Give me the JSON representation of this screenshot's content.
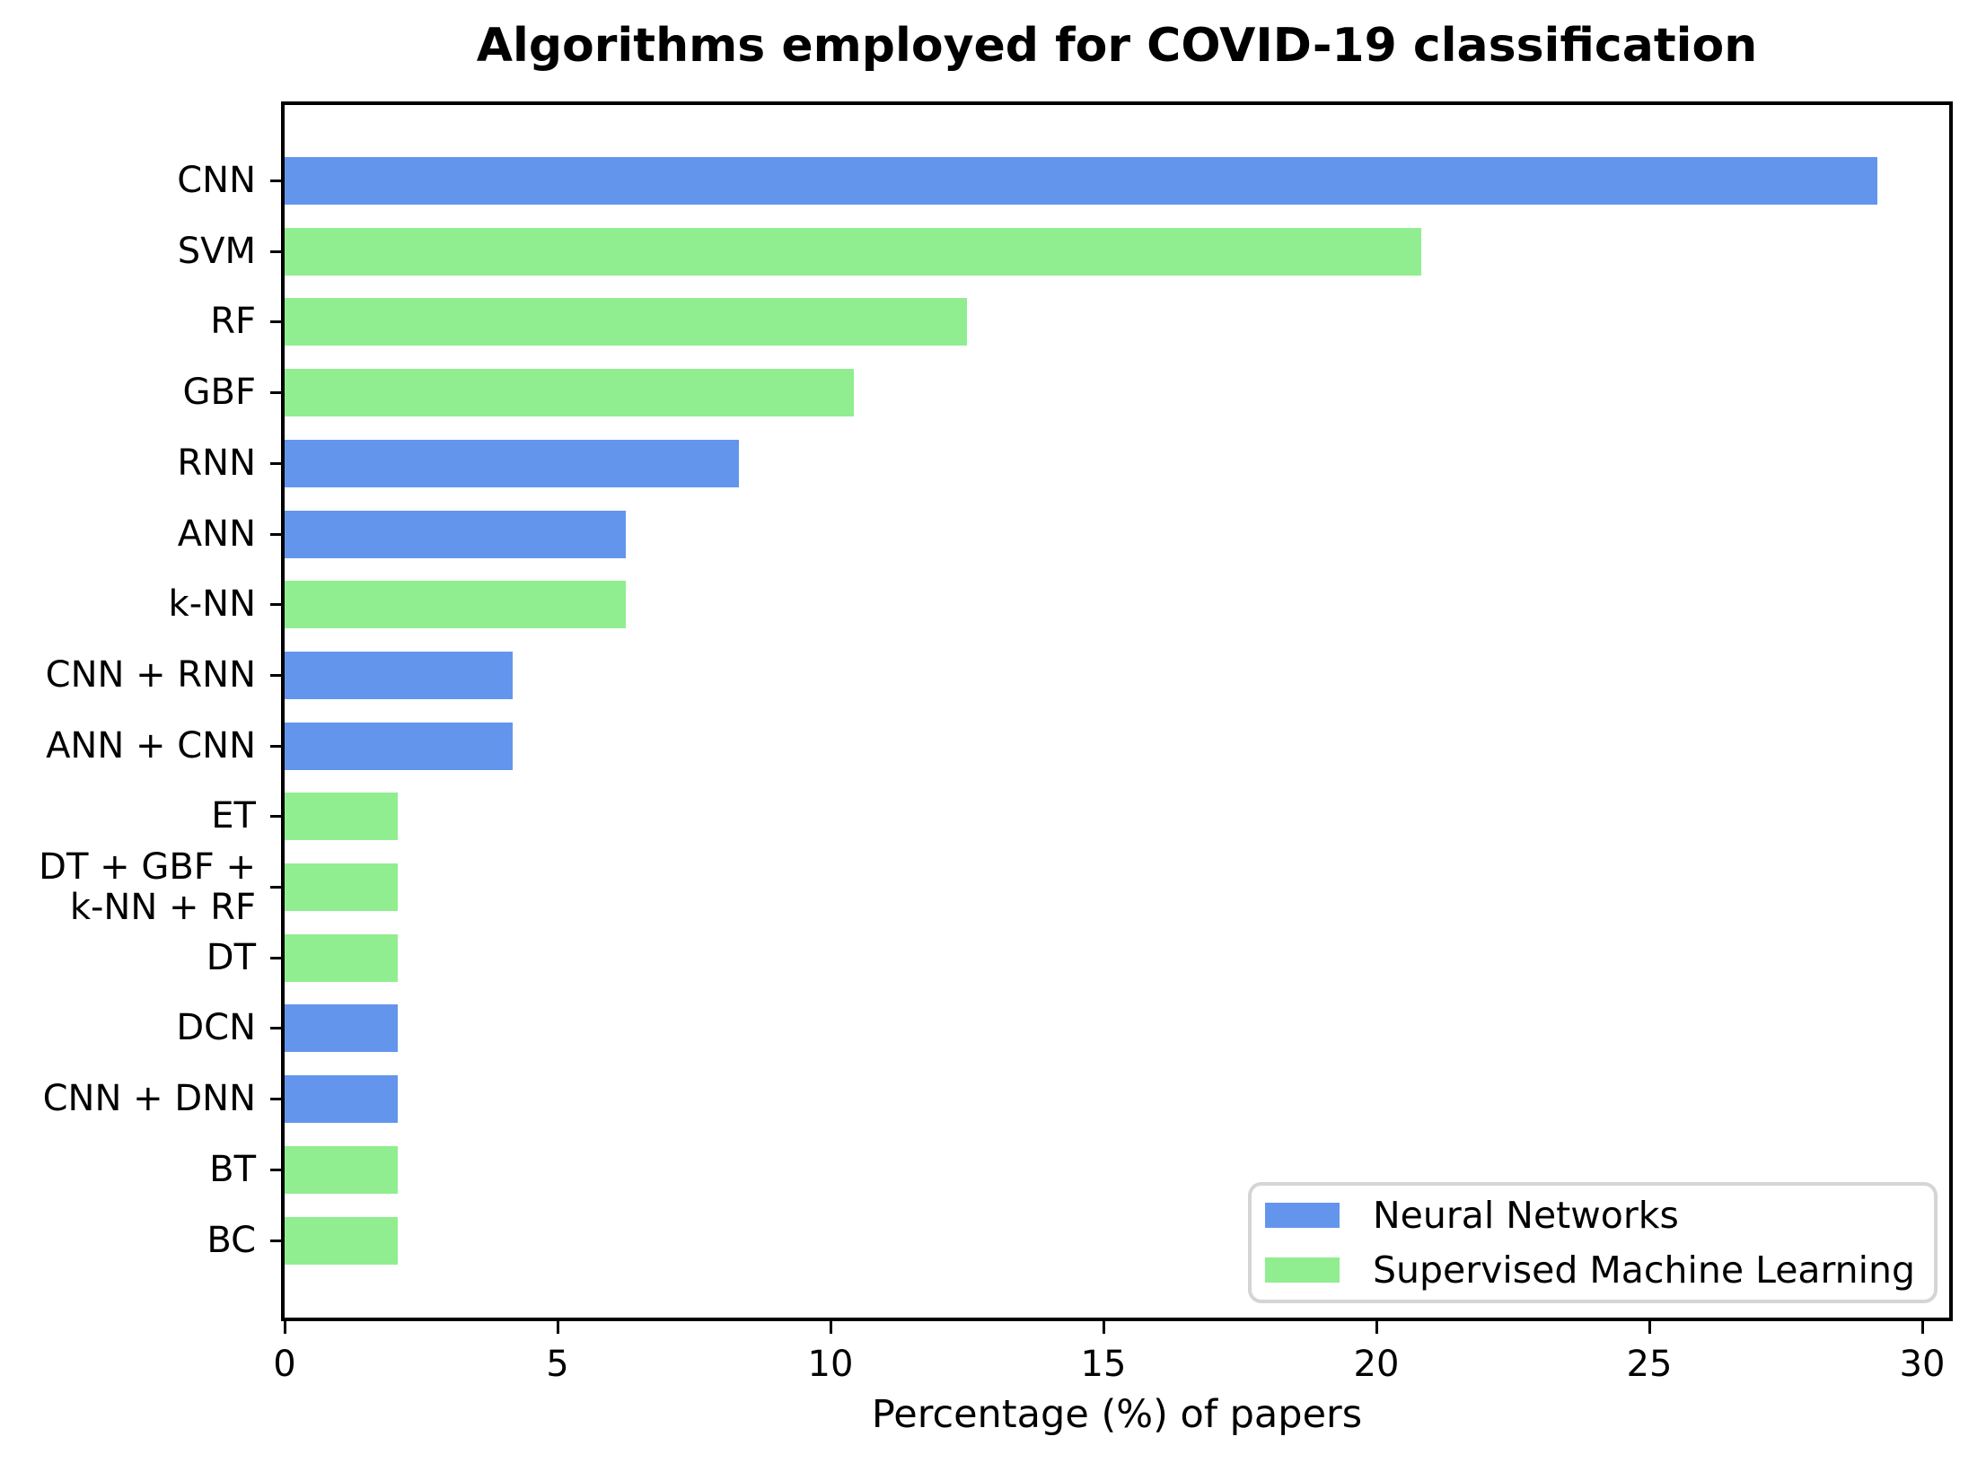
{
  "chart_data": {
    "type": "bar",
    "orientation": "horizontal",
    "title": "Algorithms employed for COVID-19 classification",
    "xlabel": "Percentage (%) of papers",
    "ylabel": "",
    "xlim": [
      0,
      30.5
    ],
    "xticks": [
      0,
      5,
      10,
      15,
      20,
      25,
      30
    ],
    "grid": false,
    "background_color": "#ffffff",
    "spine_color": "#000000",
    "legend": {
      "position": "lower-right",
      "border_color": "#d5d5d5",
      "entries": [
        {
          "label": "Neural Networks",
          "color": "#6495ed"
        },
        {
          "label": "Supervised Machine Learning",
          "color": "#90ee90"
        }
      ]
    },
    "bars": [
      {
        "label": "CNN",
        "group": "Neural Networks",
        "value": 29.17
      },
      {
        "label": "SVM",
        "group": "Supervised Machine Learning",
        "value": 20.83
      },
      {
        "label": "RF",
        "group": "Supervised Machine Learning",
        "value": 12.5
      },
      {
        "label": "GBF",
        "group": "Supervised Machine Learning",
        "value": 10.42
      },
      {
        "label": "RNN",
        "group": "Neural Networks",
        "value": 8.33
      },
      {
        "label": "ANN",
        "group": "Neural Networks",
        "value": 6.25
      },
      {
        "label": "k-NN",
        "group": "Supervised Machine Learning",
        "value": 6.25
      },
      {
        "label": "CNN + RNN",
        "group": "Neural Networks",
        "value": 4.17
      },
      {
        "label": "ANN + CNN",
        "group": "Neural Networks",
        "value": 4.17
      },
      {
        "label": "ET",
        "group": "Supervised Machine Learning",
        "value": 2.08
      },
      {
        "label": "DT + GBF +\nk-NN + RF",
        "group": "Supervised Machine Learning",
        "value": 2.08
      },
      {
        "label": "DT",
        "group": "Supervised Machine Learning",
        "value": 2.08
      },
      {
        "label": "DCN",
        "group": "Neural Networks",
        "value": 2.08
      },
      {
        "label": "CNN + DNN",
        "group": "Neural Networks",
        "value": 2.08
      },
      {
        "label": "BT",
        "group": "Supervised Machine Learning",
        "value": 2.08
      },
      {
        "label": "BC",
        "group": "Supervised Machine Learning",
        "value": 2.08
      }
    ]
  }
}
